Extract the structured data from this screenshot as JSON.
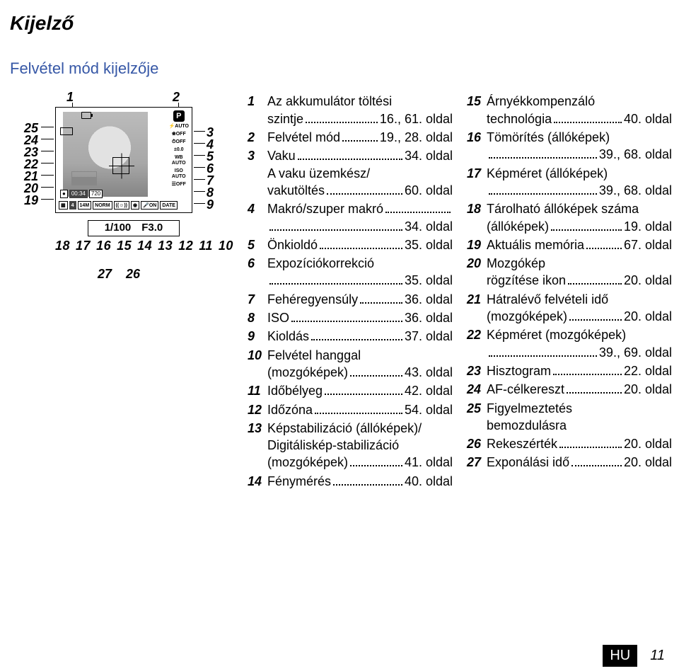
{
  "section_title": "Kijelző",
  "sub_title": "Felvétel mód kijelzője",
  "footer": {
    "lang": "HU",
    "page": "11"
  },
  "diagram": {
    "readout": "1/100 F3.0",
    "bottom_numbers": [
      "18",
      "17",
      "16",
      "15",
      "14",
      "13",
      "12",
      "11",
      "10"
    ],
    "lower_numbers": [
      "27",
      "26"
    ],
    "left_numbers": [
      "25",
      "24",
      "23",
      "22",
      "21",
      "20",
      "19"
    ],
    "right_numbers": [
      "3",
      "4",
      "5",
      "6",
      "7",
      "8",
      "9"
    ],
    "top_left": "1",
    "top_right": "2",
    "icons": {
      "p": "P",
      "auto": "AUTO",
      "off": "OFF",
      "exp": "±0.0",
      "wb": "WB\nAUTO",
      "iso": "ISO\nAUTO",
      "time": "00:34",
      "res": "720",
      "card": "4",
      "mp": "14M",
      "norm": "NORM",
      "on": "ON",
      "date": "DATE"
    }
  },
  "col1": [
    {
      "n": "1",
      "lines": [
        {
          "t": "Az akkumulátor töltési"
        }
      ],
      "cont": [
        {
          "t": "szintje",
          "p": "16., 61. oldal"
        }
      ]
    },
    {
      "n": "2",
      "lines": [
        {
          "t": "Felvétel mód",
          "p": "19., 28. oldal"
        }
      ]
    },
    {
      "n": "3",
      "lines": [
        {
          "t": "Vaku",
          "p": "34. oldal"
        }
      ],
      "extra": [
        {
          "t": "A vaku üzemkész/"
        },
        {
          "t": "vakutöltés",
          "p": "60. oldal"
        }
      ]
    },
    {
      "n": "4",
      "lines": [
        {
          "t": "Makró/szuper makró",
          "nodots": true
        }
      ],
      "cont": [
        {
          "t": "",
          "p": "34. oldal"
        }
      ]
    },
    {
      "n": "5",
      "lines": [
        {
          "t": "Önkioldó",
          "p": "35. oldal"
        }
      ]
    },
    {
      "n": "6",
      "lines": [
        {
          "t": "Expozíciókorrekció"
        }
      ],
      "cont": [
        {
          "t": "",
          "p": "35. oldal"
        }
      ]
    },
    {
      "n": "7",
      "lines": [
        {
          "t": "Fehéregyensúly",
          "p": "36. oldal"
        }
      ]
    },
    {
      "n": "8",
      "lines": [
        {
          "t": "ISO",
          "p": "36. oldal"
        }
      ]
    },
    {
      "n": "9",
      "lines": [
        {
          "t": "Kioldás",
          "p": "37. oldal"
        }
      ]
    },
    {
      "n": "10",
      "lines": [
        {
          "t": "Felvétel hanggal"
        }
      ],
      "cont": [
        {
          "t": "(mozgóképek)",
          "p": "43. oldal"
        }
      ]
    },
    {
      "n": "11",
      "lines": [
        {
          "t": "Időbélyeg",
          "p": "42. oldal"
        }
      ]
    },
    {
      "n": "12",
      "lines": [
        {
          "t": "Időzóna",
          "p": "54. oldal"
        }
      ]
    },
    {
      "n": "13",
      "lines": [
        {
          "t": "Képstabilizáció (állóképek)/"
        }
      ],
      "extra": [
        {
          "t": "Digitáliskép-stabilizáció"
        },
        {
          "t": "(mozgóképek)",
          "p": "41. oldal"
        }
      ]
    },
    {
      "n": "14",
      "lines": [
        {
          "t": "Fénymérés",
          "p": "40. oldal"
        }
      ]
    }
  ],
  "col2": [
    {
      "n": "15",
      "lines": [
        {
          "t": "Árnyékkompenzáló"
        }
      ],
      "cont": [
        {
          "t": "technológia",
          "p": "40. oldal"
        }
      ]
    },
    {
      "n": "16",
      "lines": [
        {
          "t": "Tömörítés (állóképek)"
        }
      ],
      "cont": [
        {
          "t": "",
          "p": "39., 68. oldal"
        }
      ]
    },
    {
      "n": "17",
      "lines": [
        {
          "t": "Képméret (állóképek)"
        }
      ],
      "cont": [
        {
          "t": "",
          "p": "39., 68. oldal"
        }
      ]
    },
    {
      "n": "18",
      "lines": [
        {
          "t": "Tárolható állóképek száma"
        }
      ],
      "cont": [
        {
          "t": "(állóképek)",
          "p": "19. oldal"
        }
      ]
    },
    {
      "n": "19",
      "lines": [
        {
          "t": "Aktuális memória",
          "p": "67. oldal"
        }
      ]
    },
    {
      "n": "20",
      "lines": [
        {
          "t": "Mozgókép"
        }
      ],
      "cont": [
        {
          "t": "rögzítése ikon",
          "p": "20. oldal"
        }
      ]
    },
    {
      "n": "21",
      "lines": [
        {
          "t": "Hátralévő felvételi idő"
        }
      ],
      "cont": [
        {
          "t": "(mozgóképek)",
          "p": "20. oldal"
        }
      ]
    },
    {
      "n": "22",
      "lines": [
        {
          "t": "Képméret (mozgóképek)"
        }
      ],
      "cont": [
        {
          "t": "",
          "p": "39., 69. oldal"
        }
      ]
    },
    {
      "n": "23",
      "lines": [
        {
          "t": "Hisztogram",
          "p": "22. oldal"
        }
      ]
    },
    {
      "n": "24",
      "lines": [
        {
          "t": "AF-célkereszt",
          "p": "20. oldal"
        }
      ]
    },
    {
      "n": "25",
      "lines": [
        {
          "t": "Figyelmeztetés"
        }
      ],
      "cont": [
        {
          "t": "bemozdulásra",
          "nodots": true
        }
      ]
    },
    {
      "n": "26",
      "lines": [
        {
          "t": "Rekeszérték",
          "p": "20. oldal"
        }
      ]
    },
    {
      "n": "27",
      "lines": [
        {
          "t": "Exponálási idő",
          "p": "20. oldal"
        }
      ]
    }
  ]
}
